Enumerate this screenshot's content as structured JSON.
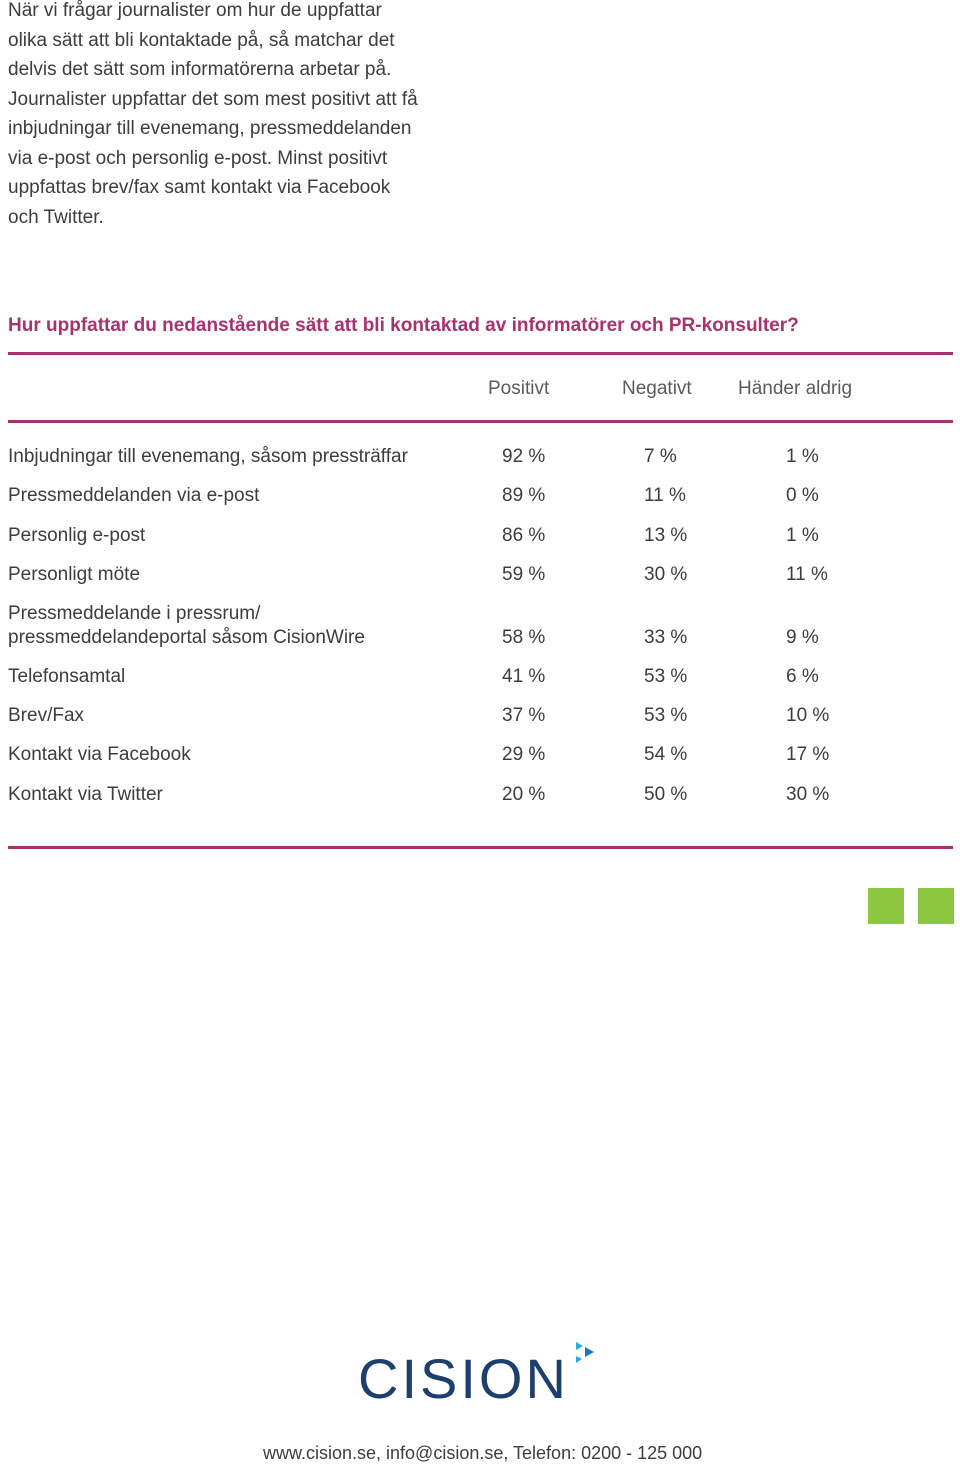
{
  "intro": {
    "line1": "När vi frågar journalister om hur de uppfattar",
    "line2": "olika sätt att bli kontaktade på, så matchar det",
    "line3": "delvis det sätt som informatörerna arbetar på.",
    "line4": "Journalister uppfattar det som mest positivt att få",
    "line5": "inbjudningar till evenemang, pressmeddelanden",
    "line6": "via e-post och personlig e-post. Minst positivt",
    "line7": "uppfattas brev/fax samt kontakt via Facebook",
    "line8": "och Twitter."
  },
  "question": "Hur uppfattar du nedanstående sätt att bli kontaktad av informatörer och PR-konsulter?",
  "table": {
    "headers": [
      "Positivt",
      "Negativt",
      "Händer aldrig"
    ],
    "rows": [
      {
        "label": "Inbjudningar till evenemang, såsom pressträffar",
        "positive": "92 %",
        "negative": "7 %",
        "never": "1 %"
      },
      {
        "label": "Pressmeddelanden via e-post",
        "positive": "89 %",
        "negative": "11 %",
        "never": "0 %"
      },
      {
        "label": "Personlig e-post",
        "positive": "86 %",
        "negative": "13 %",
        "never": "1 %"
      },
      {
        "label": "Personligt möte",
        "positive": "59 %",
        "negative": "30 %",
        "never": "11 %"
      },
      {
        "label_line1": "Pressmeddelande i pressrum/",
        "label": "pressmeddelandeportal såsom CisionWire",
        "positive": "58 %",
        "negative": "33 %",
        "never": "9 %"
      },
      {
        "label": "Telefonsamtal",
        "positive": "41 %",
        "negative": "53 %",
        "never": "6 %"
      },
      {
        "label": "Brev/Fax",
        "positive": "37 %",
        "negative": "53 %",
        "never": "10 %"
      },
      {
        "label": "Kontakt via Facebook",
        "positive": "29 %",
        "negative": "54 %",
        "never": "17 %"
      },
      {
        "label": "Kontakt via Twitter",
        "positive": "20 %",
        "negative": "50 %",
        "never": "30 %"
      }
    ]
  },
  "logo": {
    "text": "CISION"
  },
  "footer": "www.cision.se, info@cision.se, Telefon: 0200 - 125 000",
  "colors": {
    "accent": "#a8326e",
    "square": "#8dc63f",
    "logo": "#1d3f6e",
    "logo_arrow_blue": "#1d75bc",
    "logo_arrow_teal": "#29aae1"
  }
}
